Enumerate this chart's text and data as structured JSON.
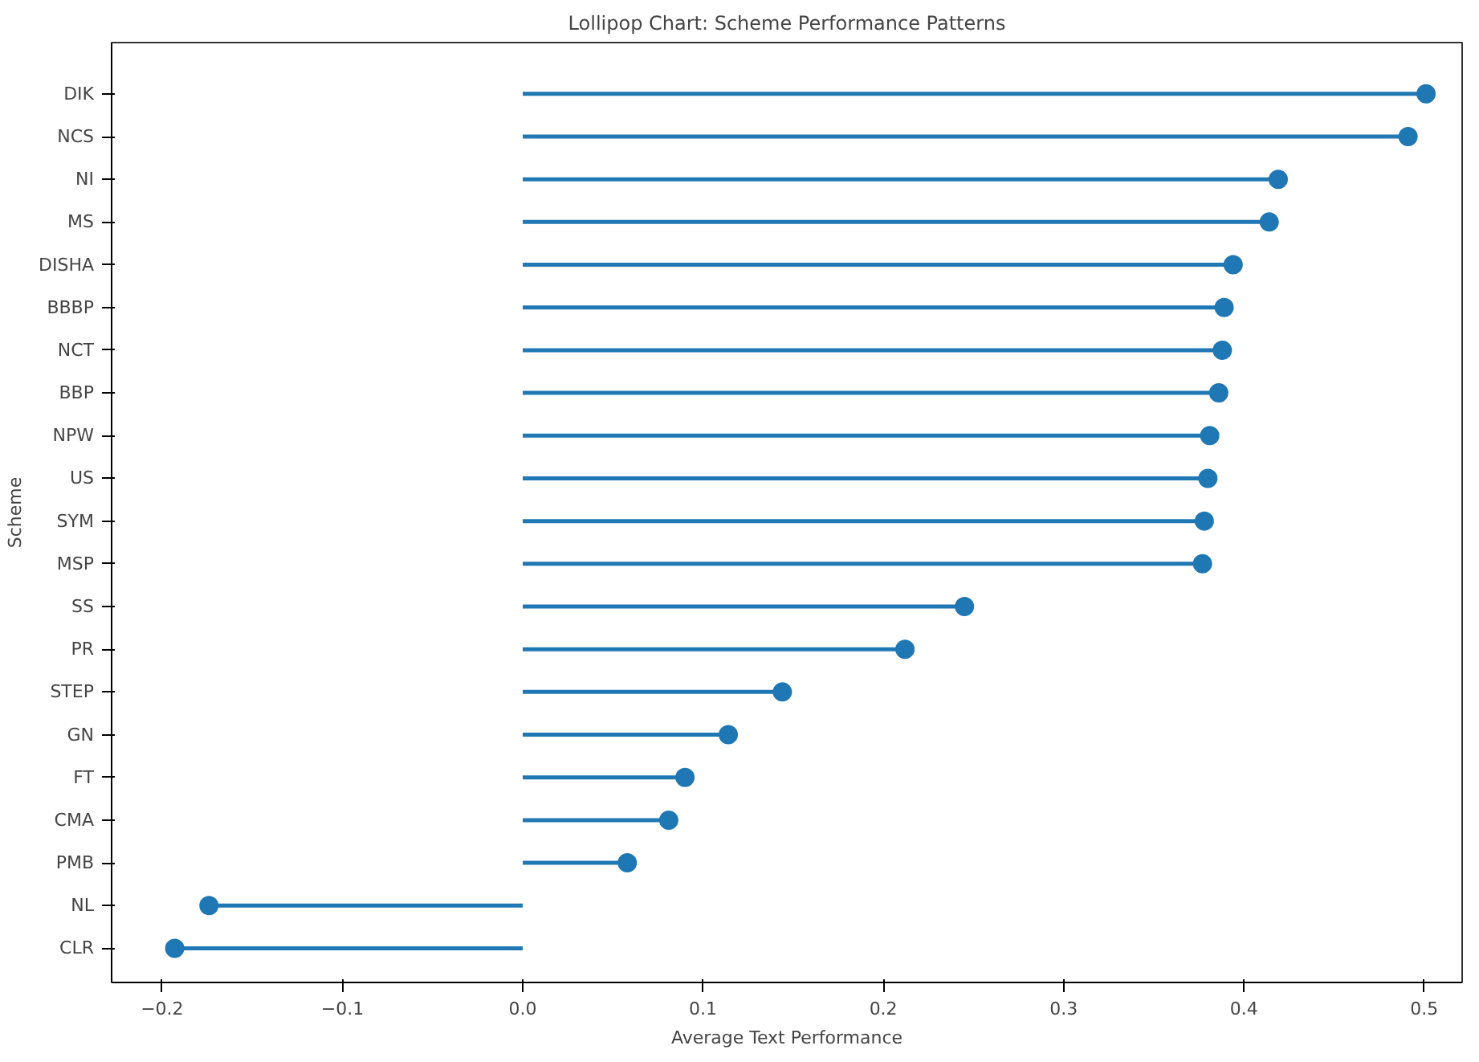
{
  "chart_data": {
    "type": "lollipop",
    "title": "Lollipop Chart: Scheme Performance Patterns",
    "xlabel": "Average Text Performance",
    "ylabel": "Scheme",
    "orientation": "horizontal",
    "categories": [
      "DIK",
      "NCS",
      "NI",
      "MS",
      "DISHA",
      "BBBP",
      "NCT",
      "BBP",
      "NPW",
      "US",
      "SYM",
      "MSP",
      "SS",
      "PR",
      "STEP",
      "GN",
      "FT",
      "CMA",
      "PMB",
      "NL",
      "CLR"
    ],
    "values": [
      0.501,
      0.491,
      0.419,
      0.414,
      0.394,
      0.389,
      0.388,
      0.386,
      0.381,
      0.38,
      0.378,
      0.377,
      0.245,
      0.212,
      0.144,
      0.114,
      0.09,
      0.081,
      0.058,
      -0.174,
      -0.193
    ],
    "color": "#1f77b4",
    "marker": "circle",
    "grid": false,
    "xlim": [
      -0.228,
      0.521
    ],
    "xticks": [
      {
        "value": -0.2,
        "label": "−0.2"
      },
      {
        "value": -0.1,
        "label": "−0.1"
      },
      {
        "value": 0,
        "label": "0.0"
      },
      0.1,
      0.2,
      0.3,
      0.4,
      0.5
    ]
  }
}
